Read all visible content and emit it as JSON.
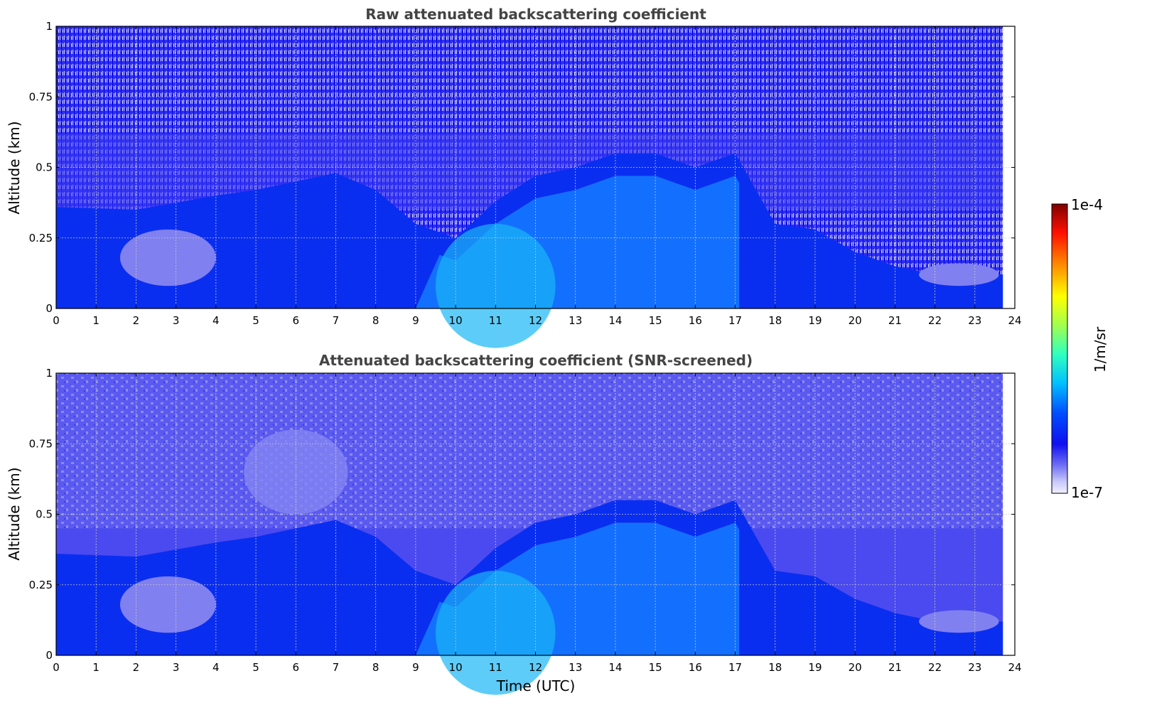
{
  "chart_data": [
    {
      "type": "heatmap",
      "title": "Raw attenuated backscattering coefficient",
      "xlabel": "",
      "ylabel": "Altitude (km)",
      "xlim": [
        0,
        24
      ],
      "ylim": [
        0,
        1
      ],
      "x_ticks": [
        "0",
        "1",
        "2",
        "3",
        "4",
        "5",
        "6",
        "7",
        "8",
        "9",
        "10",
        "11",
        "12",
        "13",
        "14",
        "15",
        "16",
        "17",
        "18",
        "19",
        "20",
        "21",
        "22",
        "23",
        "24"
      ],
      "y_ticks": [
        "0",
        "0.25",
        "0.5",
        "0.75",
        "1"
      ],
      "data_end_time": 23.7,
      "grid": true,
      "colormap": "jet (log scale)",
      "boundary_layer_top_km": [
        [
          0,
          0.36
        ],
        [
          2,
          0.35
        ],
        [
          4,
          0.4
        ],
        [
          5,
          0.42
        ],
        [
          6,
          0.45
        ],
        [
          7,
          0.48
        ],
        [
          8,
          0.42
        ],
        [
          9,
          0.3
        ],
        [
          10,
          0.25
        ],
        [
          11,
          0.38
        ],
        [
          12,
          0.47
        ],
        [
          13,
          0.5
        ],
        [
          14,
          0.55
        ],
        [
          15,
          0.55
        ],
        [
          16,
          0.5
        ],
        [
          17,
          0.55
        ],
        [
          18,
          0.3
        ],
        [
          19,
          0.28
        ],
        [
          20,
          0.2
        ],
        [
          21,
          0.15
        ],
        [
          22,
          0.12
        ],
        [
          23,
          0.12
        ],
        [
          23.7,
          0.12
        ]
      ],
      "max_signal_period": [
        10,
        17
      ]
    },
    {
      "type": "heatmap",
      "title": "Attenuated backscattering coefficient (SNR-screened)",
      "xlabel": "Time (UTC)",
      "ylabel": "Altitude (km)",
      "xlim": [
        0,
        24
      ],
      "ylim": [
        0,
        1
      ],
      "x_ticks": [
        "0",
        "1",
        "2",
        "3",
        "4",
        "5",
        "6",
        "7",
        "8",
        "9",
        "10",
        "11",
        "12",
        "13",
        "14",
        "15",
        "16",
        "17",
        "18",
        "19",
        "20",
        "21",
        "22",
        "23",
        "24"
      ],
      "y_ticks": [
        "0",
        "0.25",
        "0.5",
        "0.75",
        "1"
      ],
      "data_end_time": 23.7,
      "grid": true,
      "colormap": "jet (log scale)"
    }
  ],
  "colorbar": {
    "min_label": "1e-7",
    "max_label": "1e-4",
    "unit_label": "1/m/sr",
    "scale": "log"
  },
  "colors": {
    "background_fill": "#5a5af0",
    "low_signal": "#8080f0",
    "boundary_layer": "#0a2ef0",
    "strong_signal": "#1478ff",
    "peak_signal": "#19b6f5",
    "title": "#444444"
  }
}
